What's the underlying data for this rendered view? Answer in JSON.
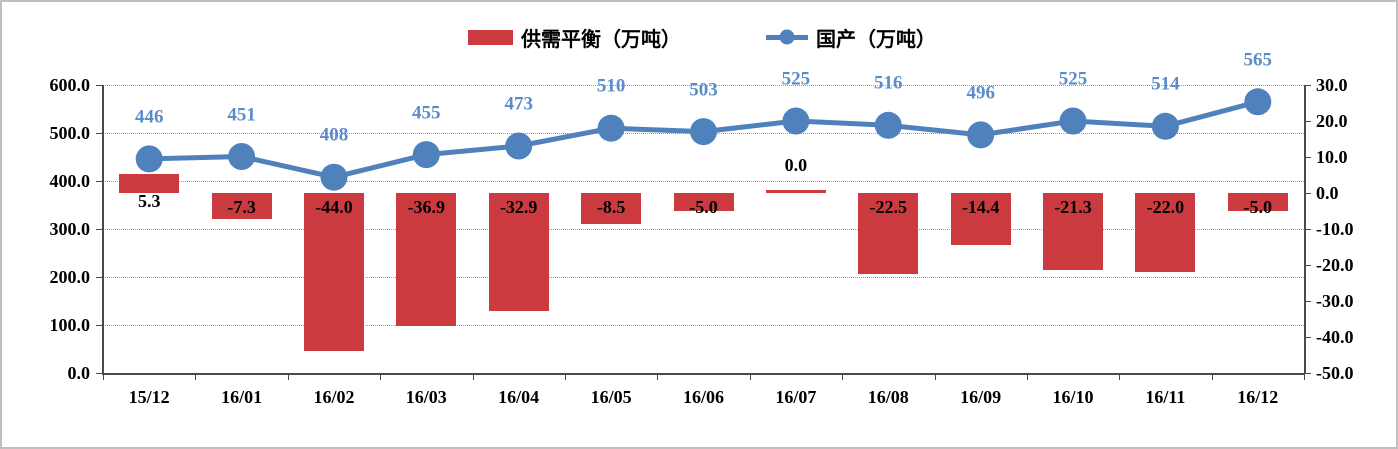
{
  "chart_data": {
    "type": "combo",
    "categories": [
      "15/12",
      "16/01",
      "16/02",
      "16/03",
      "16/04",
      "16/05",
      "16/06",
      "16/07",
      "16/08",
      "16/09",
      "16/10",
      "16/11",
      "16/12"
    ],
    "series": [
      {
        "name": "供需平衡（万吨）",
        "type": "bar",
        "axis": "right",
        "values": [
          5.3,
          -7.3,
          -44.0,
          -36.9,
          -32.9,
          -8.5,
          -5.0,
          0.0,
          -22.5,
          -14.4,
          -21.3,
          -22.0,
          -5.0
        ],
        "labels": [
          "5.3",
          "-7.3",
          "-44.0",
          "-36.9",
          "-32.9",
          "-8.5",
          "-5.0",
          "0.0",
          "-22.5",
          "-14.4",
          "-21.3",
          "-22.0",
          "-5.0"
        ]
      },
      {
        "name": "国产（万吨）",
        "type": "line",
        "axis": "left",
        "values": [
          446,
          451,
          408,
          455,
          473,
          510,
          503,
          525,
          516,
          496,
          525,
          514,
          565
        ],
        "labels": [
          "446",
          "451",
          "408",
          "455",
          "473",
          "510",
          "503",
          "525",
          "516",
          "496",
          "525",
          "514",
          "565"
        ]
      }
    ],
    "y_left": {
      "min": 0,
      "max": 600,
      "step": 100,
      "ticks": [
        "600.0",
        "500.0",
        "400.0",
        "300.0",
        "200.0",
        "100.0",
        "0.0"
      ]
    },
    "y_right": {
      "min": -50,
      "max": 30,
      "step": 10,
      "ticks": [
        "30.0",
        "20.0",
        "10.0",
        "0.0",
        "-10.0",
        "-20.0",
        "-30.0",
        "-40.0",
        "-50.0"
      ]
    },
    "grid": true,
    "legend_position": "top",
    "colors": {
      "bar": "#ca3a3e",
      "line": "#4f81bd",
      "line_label": "#5b8bc9",
      "bar_label": "#000000",
      "grid": "#9b9b9b",
      "axis": "#4a4a4a",
      "text": "#000000",
      "frame": "#bfbfbf"
    }
  }
}
